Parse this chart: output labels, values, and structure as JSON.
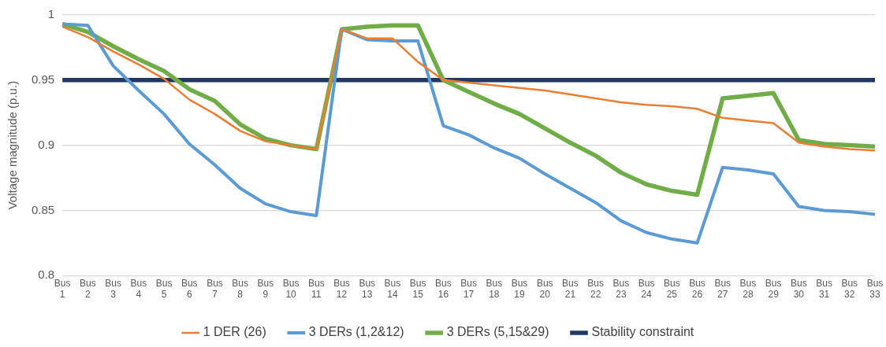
{
  "chart_data": {
    "type": "line",
    "ylabel": "Voltage magnitude (p.u.)",
    "categories": [
      "Bus 1",
      "Bus 2",
      "Bus 3",
      "Bus 4",
      "Bus 5",
      "Bus 6",
      "Bus 7",
      "Bus 8",
      "Bus 9",
      "Bus 10",
      "Bus 11",
      "Bus 12",
      "Bus 13",
      "Bus 14",
      "Bus 15",
      "Bus 16",
      "Bus 17",
      "Bus 18",
      "Bus 19",
      "Bus 20",
      "Bus 21",
      "Bus 22",
      "Bus 23",
      "Bus 24",
      "Bus 25",
      "Bus 26",
      "Bus 27",
      "Bus 28",
      "Bus 29",
      "Bus 30",
      "Bus 31",
      "Bus 32",
      "Bus 33"
    ],
    "series": [
      {
        "name": "1 DER (26)",
        "color": "#ed7d31",
        "values": [
          0.991,
          0.983,
          0.972,
          0.962,
          0.951,
          0.935,
          0.924,
          0.911,
          0.903,
          0.9,
          0.897,
          0.989,
          0.982,
          0.982,
          0.964,
          0.95,
          0.948,
          0.946,
          0.944,
          0.942,
          0.939,
          0.936,
          0.933,
          0.931,
          0.93,
          0.928,
          0.921,
          0.919,
          0.917,
          0.902,
          0.899,
          0.897,
          0.896
        ]
      },
      {
        "name": "3 DERs (1,2&12)",
        "color": "#5b9bd5",
        "values": [
          0.993,
          0.992,
          0.961,
          0.942,
          0.924,
          0.901,
          0.885,
          0.867,
          0.855,
          0.849,
          0.846,
          0.989,
          0.981,
          0.98,
          0.98,
          0.915,
          0.908,
          0.898,
          0.89,
          0.878,
          0.867,
          0.856,
          0.842,
          0.833,
          0.828,
          0.825,
          0.883,
          0.881,
          0.878,
          0.853,
          0.85,
          0.849,
          0.847
        ]
      },
      {
        "name": "3 DERs (5,15&29)",
        "color": "#70ad47",
        "values": [
          0.993,
          0.987,
          0.976,
          0.966,
          0.957,
          0.943,
          0.934,
          0.916,
          0.905,
          0.9,
          0.897,
          0.989,
          0.991,
          0.992,
          0.992,
          0.95,
          0.941,
          0.932,
          0.924,
          0.913,
          0.902,
          0.892,
          0.879,
          0.87,
          0.865,
          0.862,
          0.936,
          0.938,
          0.94,
          0.904,
          0.901,
          0.9,
          0.899
        ]
      },
      {
        "name": "Stability constraint",
        "color": "#203864",
        "values": [
          0.95,
          0.95,
          0.95,
          0.95,
          0.95,
          0.95,
          0.95,
          0.95,
          0.95,
          0.95,
          0.95,
          0.95,
          0.95,
          0.95,
          0.95,
          0.95,
          0.95,
          0.95,
          0.95,
          0.95,
          0.95,
          0.95,
          0.95,
          0.95,
          0.95,
          0.95,
          0.95,
          0.95,
          0.95,
          0.95,
          0.95,
          0.95,
          0.95
        ]
      }
    ],
    "ylim": [
      0.8,
      1
    ],
    "yticks": [
      {
        "value": 0.8,
        "label": "0.8"
      },
      {
        "value": 0.85,
        "label": "0.85"
      },
      {
        "value": 0.9,
        "label": "0.9"
      },
      {
        "value": 0.95,
        "label": "0.95"
      },
      {
        "value": 1,
        "label": "1"
      }
    ],
    "grid": "y",
    "legend": "bottom",
    "marker": "none",
    "line_style": "solid"
  }
}
